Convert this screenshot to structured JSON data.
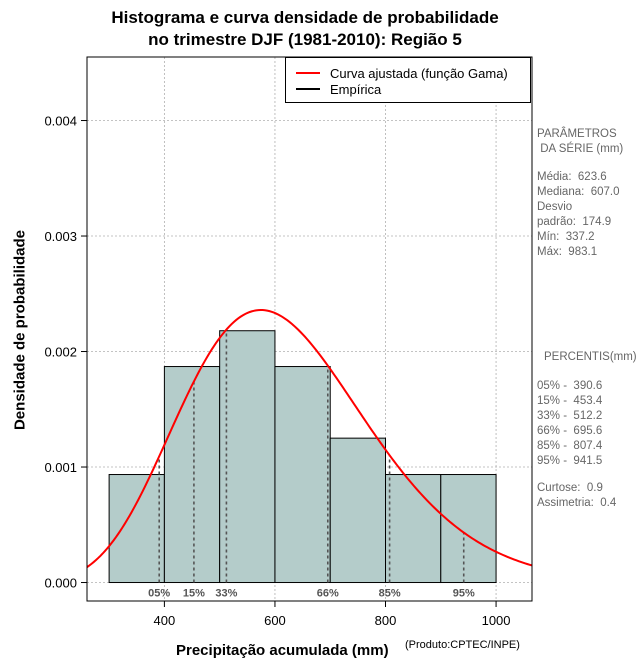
{
  "title_line1": "Histograma e curva densidade de probabilidade",
  "title_line2": "no trimestre DJF (1981-2010): Região 5",
  "legend": {
    "fitted": "Curva ajustada (função Gama)",
    "empirical": "Empírica"
  },
  "credit": "(Produto:CPTEC/INPE)",
  "stats": {
    "params_heading1": "PARÂMETROS",
    "params_heading2": " DA SÉRIE (mm)",
    "mean": "Média:  623.6",
    "median": "Mediana:  607.0",
    "desvio": "Desvio",
    "sd": "padrão:  174.9",
    "min": "Mín:  337.2",
    "max": "Máx:  983.1",
    "percentis_heading": "PERCENTIS(mm)",
    "p05": "05% -  390.6",
    "p15": "15% -  453.4",
    "p33": "33% -  512.2",
    "p66": "66% -  695.6",
    "p85": "85% -  807.4",
    "p95": "95% -  941.5",
    "kurtosis": "Curtose:  0.9",
    "skewness": "Assimetria:  0.4"
  },
  "colors": {
    "bar_fill": "#b4ccca",
    "curve": "#ff0000",
    "grid": "#b0b0b0",
    "percentile": "#555555"
  },
  "chart_data": {
    "type": "bar",
    "title": "Histograma e curva densidade de probabilidade no trimestre DJF (1981-2010): Região 5",
    "xlabel": "Precipitação acumulada (mm)",
    "ylabel": "Densidade de probabilidade",
    "xlim": [
      260,
      1065
    ],
    "ylim": [
      -0.00016,
      0.00455
    ],
    "grid": true,
    "legend_position": "top-right",
    "xticks": [
      400,
      600,
      800,
      1000
    ],
    "xtick_labels": [
      "400",
      "600",
      "800",
      "1000"
    ],
    "yticks": [
      0,
      0.001,
      0.002,
      0.003,
      0.004
    ],
    "ytick_labels": [
      "0.000",
      "0.001",
      "0.002",
      "0.003",
      "0.004"
    ],
    "bins": [
      {
        "start": 300,
        "end": 400,
        "density": 0.000935
      },
      {
        "start": 400,
        "end": 500,
        "density": 0.00187
      },
      {
        "start": 500,
        "end": 600,
        "density": 0.00218
      },
      {
        "start": 600,
        "end": 700,
        "density": 0.00187
      },
      {
        "start": 700,
        "end": 800,
        "density": 0.00125
      },
      {
        "start": 800,
        "end": 900,
        "density": 0.000935
      },
      {
        "start": 900,
        "end": 1000,
        "density": 0.000935
      }
    ],
    "gamma_fit": {
      "mean": 623.6,
      "sd": 174.9
    },
    "percentiles": [
      {
        "label": "05%",
        "value": 390.6
      },
      {
        "label": "15%",
        "value": 453.4
      },
      {
        "label": "33%",
        "value": 512.2
      },
      {
        "label": "66%",
        "value": 695.6
      },
      {
        "label": "85%",
        "value": 807.4
      },
      {
        "label": "95%",
        "value": 941.5
      }
    ]
  }
}
